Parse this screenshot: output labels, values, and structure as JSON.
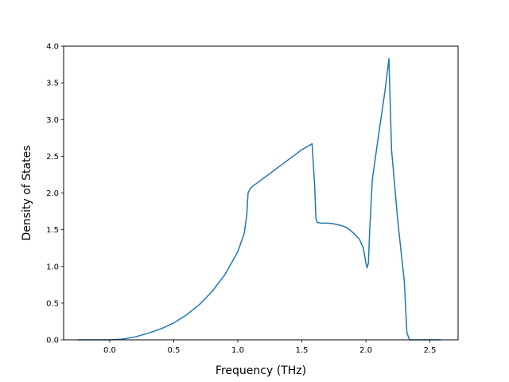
{
  "chart_data": {
    "type": "line",
    "title": "",
    "xlabel": "Frequency (THz)",
    "ylabel": "Density of States",
    "xlim": [
      -0.36,
      2.72
    ],
    "ylim": [
      0.0,
      4.0
    ],
    "grid": false,
    "legend": "none",
    "x_ticks": [
      0.0,
      0.5,
      1.0,
      1.5,
      2.0,
      2.5
    ],
    "x_tick_labels": [
      "0.0",
      "0.5",
      "1.0",
      "1.5",
      "2.0",
      "2.5"
    ],
    "y_ticks": [
      0.0,
      0.5,
      1.0,
      1.5,
      2.0,
      2.5,
      3.0,
      3.5,
      4.0
    ],
    "y_tick_labels": [
      "0.0",
      "0.5",
      "1.0",
      "1.5",
      "2.0",
      "2.5",
      "3.0",
      "3.5",
      "4.0"
    ],
    "series": [
      {
        "color": "#1f77b4",
        "x": [
          -0.24,
          0.0,
          0.1,
          0.2,
          0.3,
          0.4,
          0.5,
          0.6,
          0.7,
          0.8,
          0.9,
          1.0,
          1.05,
          1.07,
          1.08,
          1.1,
          1.2,
          1.3,
          1.4,
          1.5,
          1.58,
          1.6,
          1.61,
          1.62,
          1.65,
          1.7,
          1.75,
          1.8,
          1.85,
          1.9,
          1.95,
          1.98,
          2.0,
          2.01,
          2.02,
          2.03,
          2.05,
          2.1,
          2.15,
          2.18,
          2.2,
          2.25,
          2.3,
          2.32,
          2.34,
          2.35,
          2.4,
          2.58
        ],
        "y": [
          0.0,
          0.0,
          0.01,
          0.04,
          0.09,
          0.15,
          0.23,
          0.34,
          0.48,
          0.66,
          0.89,
          1.2,
          1.45,
          1.7,
          2.0,
          2.07,
          2.2,
          2.33,
          2.46,
          2.59,
          2.67,
          2.1,
          1.65,
          1.6,
          1.59,
          1.59,
          1.58,
          1.56,
          1.53,
          1.46,
          1.37,
          1.25,
          1.05,
          0.98,
          1.05,
          1.5,
          2.18,
          2.8,
          3.4,
          3.83,
          2.6,
          1.6,
          0.8,
          0.1,
          0.0,
          0.0,
          0.0,
          0.0
        ]
      }
    ]
  }
}
